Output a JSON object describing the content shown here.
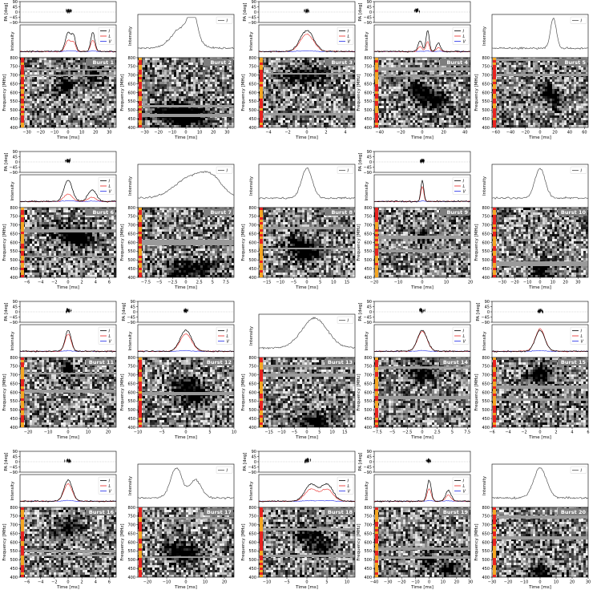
{
  "chart_data": {
    "type": "multi-panel",
    "layout": {
      "rows": 4,
      "cols": 5
    },
    "labels": {
      "pa": "PA [deg]",
      "intensity": "Intensity",
      "frequency": "Frequency [MHz]",
      "time": "Time [ms]"
    },
    "pa_ticks": [
      90,
      45,
      0,
      -45,
      -90
    ],
    "freq_ticks": [
      800,
      750,
      700,
      650,
      600,
      550,
      500,
      450,
      400
    ],
    "freq_range": [
      400,
      800
    ],
    "legend_entries": [
      "I",
      "L",
      "V"
    ],
    "series_colors": {
      "I": "#000000",
      "L": "#e8231f",
      "V": "#1f2ae8",
      "I_unpolarized": "#555555"
    },
    "bursts": [
      {
        "name": "Burst 1",
        "has_pa": true,
        "polarized": true,
        "xlim": [
          -35,
          35
        ],
        "xticks": [
          -30,
          -20,
          -10,
          0,
          10,
          20,
          30
        ],
        "components": [
          [
            0,
            900,
            6
          ],
          [
            18,
            700,
            4
          ],
          [
            -2,
            650,
            4
          ]
        ],
        "profile": [
          [
            0,
            0.9,
            2
          ],
          [
            4,
            0.7,
            1.5
          ],
          [
            18,
            0.9,
            1.5
          ]
        ],
        "lin_frac": 0.5
      },
      {
        "name": "Burst 2",
        "has_pa": false,
        "polarized": false,
        "xlim": [
          -35,
          35
        ],
        "xticks": [
          -30,
          -20,
          -10,
          0,
          10,
          20,
          30
        ],
        "components": [
          [
            -8,
            480,
            12
          ],
          [
            0,
            460,
            10
          ]
        ],
        "profile": [
          [
            -2,
            0.7,
            8
          ],
          [
            5,
            0.9,
            3
          ]
        ],
        "lin_frac": 0
      },
      {
        "name": "Burst 3",
        "has_pa": true,
        "polarized": true,
        "xlim": [
          -5,
          5
        ],
        "xticks": [
          -4,
          -2,
          0,
          2,
          4
        ],
        "components": [
          [
            0,
            700,
            1.5
          ]
        ],
        "profile": [
          [
            0,
            1.0,
            0.7
          ]
        ],
        "lin_frac": 0.7
      },
      {
        "name": "Burst 4",
        "has_pa": true,
        "polarized": true,
        "xlim": [
          -45,
          45
        ],
        "xticks": [
          -40,
          -20,
          0,
          20,
          40
        ],
        "components": [
          [
            -5,
            610,
            6
          ],
          [
            5,
            580,
            5
          ],
          [
            16,
            550,
            5
          ]
        ],
        "profile": [
          [
            -2,
            0.5,
            2
          ],
          [
            5,
            1.0,
            1.5
          ],
          [
            15,
            0.4,
            2
          ]
        ],
        "lin_frac": 0.4
      },
      {
        "name": "Burst 5",
        "has_pa": false,
        "polarized": false,
        "xlim": [
          -65,
          65
        ],
        "xticks": [
          -60,
          -40,
          -20,
          0,
          20,
          40,
          60
        ],
        "components": [
          [
            10,
            600,
            6
          ],
          [
            22,
            560,
            5
          ]
        ],
        "profile": [
          [
            18,
            1.0,
            4
          ]
        ],
        "lin_frac": 0
      },
      {
        "name": "Burst 6",
        "has_pa": true,
        "polarized": true,
        "xlim": [
          -7,
          7
        ],
        "xticks": [
          -6,
          -4,
          -2,
          0,
          2,
          4,
          6
        ],
        "components": [
          [
            0,
            650,
            1.5
          ],
          [
            2,
            620,
            1.2
          ]
        ],
        "profile": [
          [
            0,
            1.0,
            0.6
          ],
          [
            3.5,
            0.55,
            0.6
          ]
        ],
        "lin_frac": 0.3
      },
      {
        "name": "Burst 7",
        "has_pa": false,
        "polarized": false,
        "xlim": [
          -9,
          9
        ],
        "xticks": [
          -7.5,
          -5,
          -2.5,
          0,
          2.5,
          5,
          7.5
        ],
        "components": [
          [
            1,
            450,
            3
          ]
        ],
        "profile": [
          [
            1,
            0.7,
            3
          ],
          [
            5,
            0.5,
            2
          ]
        ],
        "lin_frac": 0
      },
      {
        "name": "Burst 8",
        "has_pa": false,
        "polarized": false,
        "xlim": [
          -18,
          18
        ],
        "xticks": [
          -15,
          -10,
          -5,
          0,
          5,
          10,
          15
        ],
        "components": [
          [
            -3,
            580,
            3
          ],
          [
            1,
            540,
            3
          ]
        ],
        "profile": [
          [
            0,
            1.0,
            2
          ]
        ],
        "lin_frac": 0
      },
      {
        "name": "Burst 9",
        "has_pa": true,
        "polarized": true,
        "xlim": [
          -20,
          20
        ],
        "xticks": [
          -20,
          -10,
          0,
          10,
          20
        ],
        "components": [
          [
            0,
            630,
            1.5
          ]
        ],
        "profile": [
          [
            0,
            1.0,
            0.6
          ]
        ],
        "lin_frac": 0.6
      },
      {
        "name": "Burst 10",
        "has_pa": false,
        "polarized": false,
        "xlim": [
          -38,
          38
        ],
        "xticks": [
          -30,
          -20,
          -10,
          0,
          10,
          20,
          30
        ],
        "components": [
          [
            0,
            440,
            5
          ]
        ],
        "profile": [
          [
            0,
            1.0,
            4
          ]
        ],
        "lin_frac": 0
      },
      {
        "name": "Burst 11",
        "has_pa": true,
        "polarized": true,
        "xlim": [
          -24,
          24
        ],
        "xticks": [
          -20,
          -10,
          0,
          10,
          20
        ],
        "components": [
          [
            0,
            730,
            2
          ]
        ],
        "profile": [
          [
            0,
            1.0,
            1.5
          ]
        ],
        "lin_frac": 0.7
      },
      {
        "name": "Burst 12",
        "has_pa": true,
        "polarized": true,
        "xlim": [
          -10,
          10
        ],
        "xticks": [
          -10,
          -5,
          0,
          5,
          10
        ],
        "components": [
          [
            0,
            640,
            2
          ],
          [
            2,
            580,
            2
          ]
        ],
        "profile": [
          [
            0,
            1.0,
            1.2
          ]
        ],
        "lin_frac": 0.7
      },
      {
        "name": "Burst 13",
        "has_pa": false,
        "polarized": false,
        "xlim": [
          -19,
          19
        ],
        "xticks": [
          -15,
          -10,
          -5,
          0,
          5,
          10,
          15
        ],
        "components": [
          [
            3,
            430,
            5
          ]
        ],
        "profile": [
          [
            3,
            1.0,
            5
          ]
        ],
        "lin_frac": 0
      },
      {
        "name": "Burst 14",
        "has_pa": true,
        "polarized": true,
        "xlim": [
          -8,
          8
        ],
        "xticks": [
          -7.5,
          -5,
          -2.5,
          0,
          2.5,
          5,
          7.5
        ],
        "components": [
          [
            0,
            710,
            1.5
          ]
        ],
        "profile": [
          [
            0,
            1.0,
            0.8
          ]
        ],
        "lin_frac": 0.8
      },
      {
        "name": "Burst 15",
        "has_pa": true,
        "polarized": true,
        "xlim": [
          -6,
          6
        ],
        "xticks": [
          -6,
          -4,
          -2,
          0,
          2,
          4,
          6
        ],
        "components": [
          [
            0,
            700,
            1
          ]
        ],
        "profile": [
          [
            0,
            1.0,
            0.6
          ]
        ],
        "lin_frac": 0.9
      },
      {
        "name": "Burst 16",
        "has_pa": true,
        "polarized": true,
        "xlim": [
          -7,
          7
        ],
        "xticks": [
          -6,
          -4,
          -2,
          0,
          2,
          4,
          6
        ],
        "components": [
          [
            0,
            680,
            1
          ]
        ],
        "profile": [
          [
            0,
            1.0,
            0.6
          ]
        ],
        "lin_frac": 0.7
      },
      {
        "name": "Burst 17",
        "has_pa": false,
        "polarized": false,
        "xlim": [
          -25,
          25
        ],
        "xticks": [
          -20,
          -10,
          0,
          10,
          20
        ],
        "components": [
          [
            -6,
            550,
            4
          ],
          [
            2,
            530,
            4
          ]
        ],
        "profile": [
          [
            -5,
            1.0,
            3
          ],
          [
            5,
            0.6,
            3
          ]
        ],
        "lin_frac": 0
      },
      {
        "name": "Burst 18",
        "has_pa": true,
        "polarized": true,
        "xlim": [
          -12,
          12
        ],
        "xticks": [
          -10,
          -5,
          0,
          5,
          10
        ],
        "components": [
          [
            0,
            640,
            2
          ],
          [
            4,
            570,
            2
          ]
        ],
        "profile": [
          [
            1,
            0.8,
            1.5
          ],
          [
            5,
            0.8,
            1.5
          ]
        ],
        "lin_frac": 0.6
      },
      {
        "name": "Burst 19",
        "has_pa": true,
        "polarized": true,
        "xlim": [
          -40,
          30
        ],
        "xticks": [
          -40,
          -30,
          -20,
          -10,
          0,
          10,
          20,
          30
        ],
        "components": [
          [
            0,
            500,
            3
          ],
          [
            15,
            440,
            4
          ]
        ],
        "profile": [
          [
            0,
            1.0,
            1.5
          ],
          [
            14,
            0.5,
            2
          ]
        ],
        "lin_frac": 0.5
      },
      {
        "name": "Burst 20",
        "has_pa": false,
        "polarized": false,
        "xlim": [
          -30,
          30
        ],
        "xticks": [
          -30,
          -20,
          -10,
          0,
          10,
          20,
          30
        ],
        "components": [
          [
            0,
            420,
            5
          ]
        ],
        "profile": [
          [
            0,
            1.0,
            4
          ]
        ],
        "lin_frac": 0
      }
    ]
  }
}
